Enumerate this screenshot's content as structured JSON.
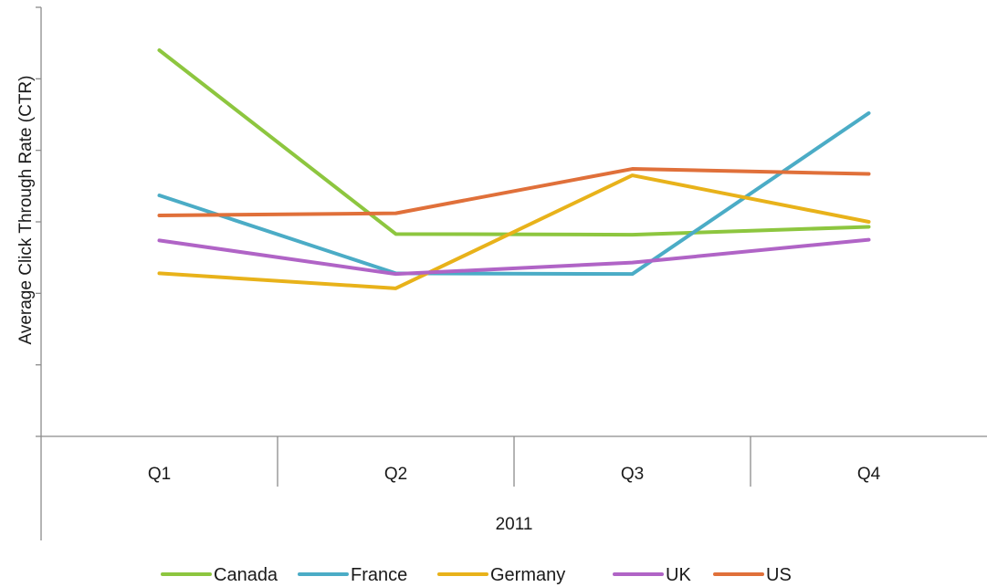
{
  "chart_data": {
    "type": "line",
    "title": "",
    "ylabel": "Average Click Through Rate (CTR)",
    "xlabel": "2011",
    "categories": [
      "Q1",
      "Q2",
      "Q3",
      "Q4"
    ],
    "group_label": "2011",
    "ylim": [
      0,
      6
    ],
    "y_tick_count": 6,
    "y_tick_labels_shown": false,
    "grid": false,
    "legend_position": "bottom",
    "series": [
      {
        "name": "Canada",
        "color": "#8dc63f",
        "values": [
          5.4,
          2.83,
          2.82,
          2.93
        ]
      },
      {
        "name": "France",
        "color": "#4bacc6",
        "values": [
          3.37,
          2.28,
          2.27,
          4.52
        ]
      },
      {
        "name": "Germany",
        "color": "#e8b21a",
        "values": [
          2.28,
          2.07,
          3.65,
          3.0
        ]
      },
      {
        "name": "UK",
        "color": "#b064c6",
        "values": [
          2.74,
          2.27,
          2.43,
          2.75
        ]
      },
      {
        "name": "US",
        "color": "#e0703a",
        "values": [
          3.09,
          3.12,
          3.74,
          3.67
        ]
      }
    ]
  }
}
